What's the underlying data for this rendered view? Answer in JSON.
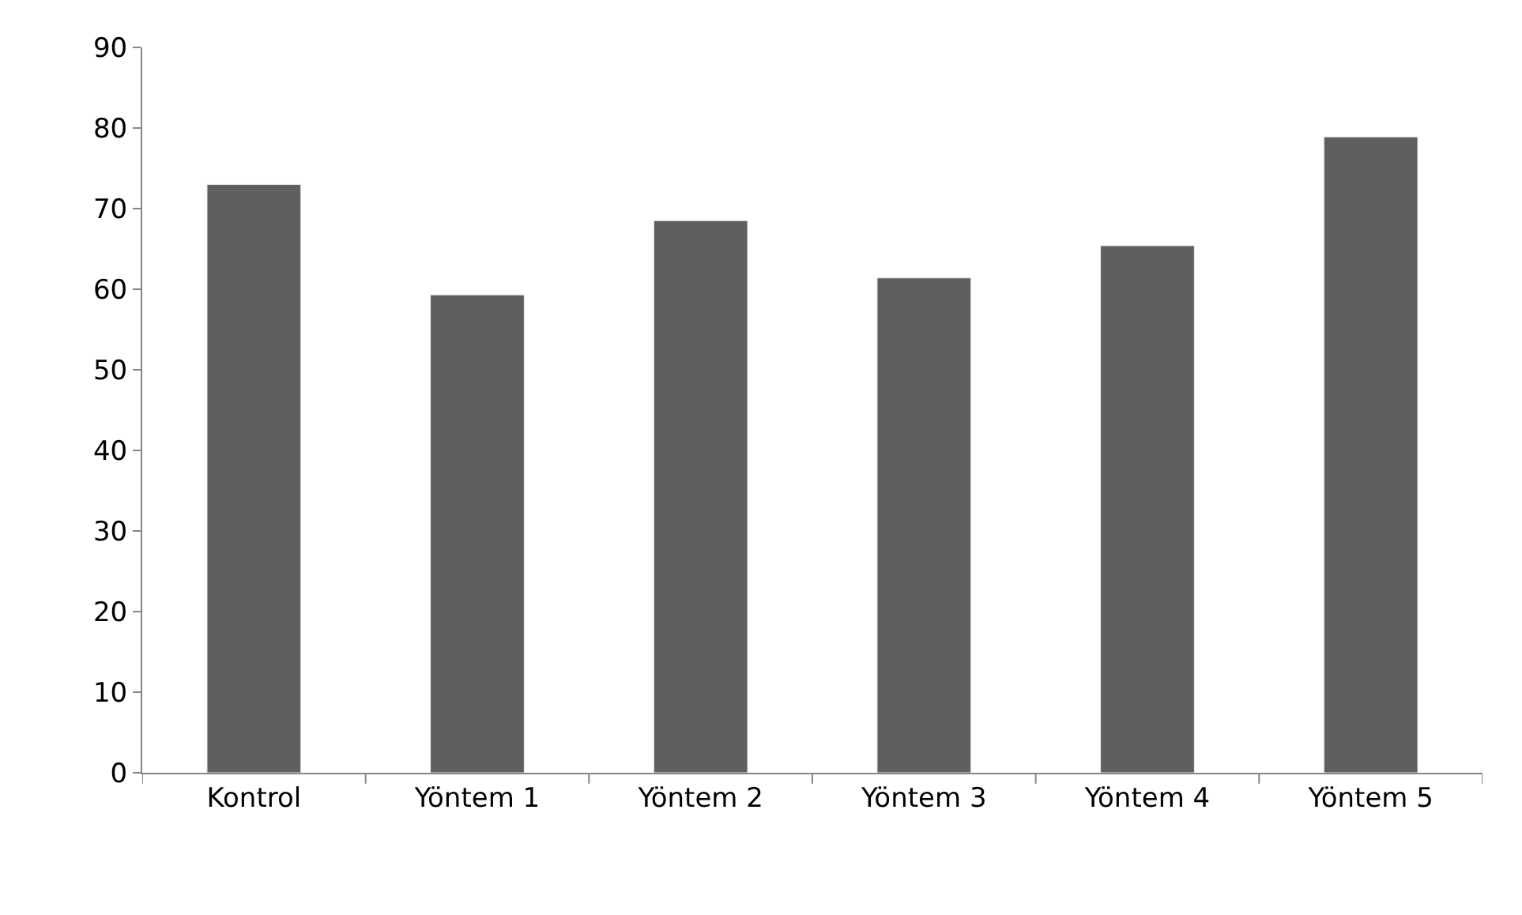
{
  "chart_data": {
    "type": "bar",
    "categories": [
      "Kontrol",
      "Yöntem 1",
      "Yöntem 2",
      "Yöntem 3",
      "Yöntem 4",
      "Yöntem 5"
    ],
    "values": [
      73,
      59.3,
      68.5,
      61.4,
      65.4,
      78.9
    ],
    "color": "#5f5f5f",
    "ylim": [
      0,
      90
    ],
    "yticks": [
      0,
      10,
      20,
      30,
      40,
      50,
      60,
      70,
      80,
      90
    ]
  }
}
